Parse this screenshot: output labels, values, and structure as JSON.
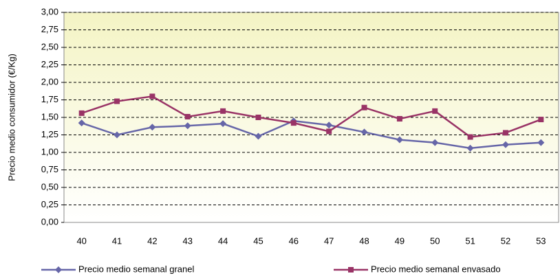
{
  "chart_data": {
    "type": "line",
    "y_label": "Precio medio consumidor (€/Kg)",
    "categories": [
      "40",
      "41",
      "42",
      "43",
      "44",
      "45",
      "46",
      "47",
      "48",
      "49",
      "50",
      "51",
      "52",
      "53"
    ],
    "series": [
      {
        "name": "Precio medio semanal granel",
        "color": "#6666a8",
        "marker": "diamond",
        "values": [
          1.42,
          1.25,
          1.36,
          1.38,
          1.41,
          1.23,
          1.45,
          1.39,
          1.29,
          1.18,
          1.14,
          1.06,
          1.11,
          1.14
        ]
      },
      {
        "name": "Precio medio semanal envasado",
        "color": "#993366",
        "marker": "square",
        "values": [
          1.56,
          1.73,
          1.8,
          1.51,
          1.59,
          1.5,
          1.42,
          1.3,
          1.64,
          1.48,
          1.59,
          1.22,
          1.28,
          1.47
        ]
      }
    ],
    "ylim": [
      0,
      3
    ],
    "yticks": [
      {
        "value": 0,
        "label": "0,00"
      },
      {
        "value": 0.25,
        "label": "0,25"
      },
      {
        "value": 0.5,
        "label": "0,50"
      },
      {
        "value": 0.75,
        "label": "0,75"
      },
      {
        "value": 1,
        "label": "1,00"
      },
      {
        "value": 1.25,
        "label": "1,25"
      },
      {
        "value": 1.5,
        "label": "1,50"
      },
      {
        "value": 1.75,
        "label": "1,75"
      },
      {
        "value": 2,
        "label": "2,00"
      },
      {
        "value": 2.25,
        "label": "2,25"
      },
      {
        "value": 2.5,
        "label": "2,50"
      },
      {
        "value": 2.75,
        "label": "2,75"
      },
      {
        "value": 3,
        "label": "3,00"
      }
    ],
    "grid": true,
    "legend": "bottom"
  }
}
